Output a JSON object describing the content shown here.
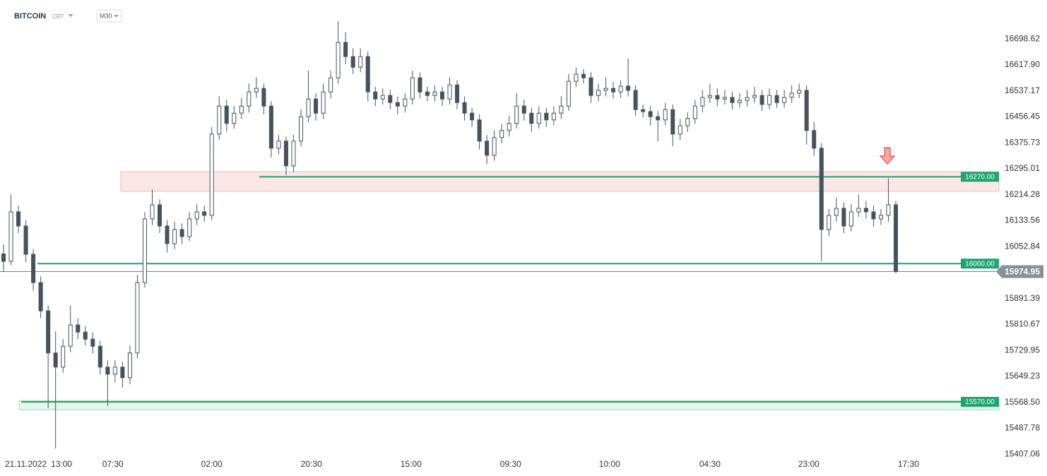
{
  "chart_data": {
    "type": "candlestick",
    "title": "BITCOIN",
    "instrument_type": "CRT",
    "timeframe": "M30",
    "up_color": "#ffffff",
    "down_color": "#46525d",
    "wick_color": "#46525d",
    "ylim": [
      15370,
      16820
    ],
    "yticks": [
      {
        "value": 15407.06,
        "label": "15407.06"
      },
      {
        "value": 15487.78,
        "label": "15487.78"
      },
      {
        "value": 15568.5,
        "label": "15568.50"
      },
      {
        "value": 15649.23,
        "label": "15649.23"
      },
      {
        "value": 15729.95,
        "label": "15729.95"
      },
      {
        "value": 15810.67,
        "label": "15810.67"
      },
      {
        "value": 15891.39,
        "label": "15891.39"
      },
      {
        "value": 16052.84,
        "label": "16052.84"
      },
      {
        "value": 16133.56,
        "label": "16133.56"
      },
      {
        "value": 16214.28,
        "label": "16214.28"
      },
      {
        "value": 16295.01,
        "label": "16295.01"
      },
      {
        "value": 16375.73,
        "label": "16375.73"
      },
      {
        "value": 16456.45,
        "label": "16456.45"
      },
      {
        "value": 16537.17,
        "label": "16537.17"
      },
      {
        "value": 16617.9,
        "label": "16617.90"
      },
      {
        "value": 16698.62,
        "label": "16698.62"
      }
    ],
    "xticks": [
      {
        "value": 3,
        "label": "21.11.2022"
      },
      {
        "value": 7.8,
        "label": "13:00"
      },
      {
        "value": 14.7,
        "label": "07:30"
      },
      {
        "value": 28,
        "label": "02:00"
      },
      {
        "value": 41.4,
        "label": "20:30"
      },
      {
        "value": 54.8,
        "label": "15:00"
      },
      {
        "value": 68.2,
        "label": "09:30"
      },
      {
        "value": 81.5,
        "label": "10:00"
      },
      {
        "value": 95,
        "label": "04:30"
      },
      {
        "value": 108.3,
        "label": "23:00"
      },
      {
        "value": 121.7,
        "label": "17:30"
      }
    ],
    "levels": [
      {
        "value": 16270,
        "label": "16270.00",
        "color": "#1ca66f"
      },
      {
        "value": 16000,
        "label": "16000.00",
        "color": "#1ca66f"
      },
      {
        "value": 15570,
        "label": "15570.00",
        "color": "#1ca66f"
      }
    ],
    "zones": [
      {
        "from": 16225,
        "to": 16286,
        "color": "#fbe3e3"
      },
      {
        "from": 15545,
        "to": 15574,
        "color": "#dff5ea"
      }
    ],
    "last_price": {
      "value": 15974.95,
      "label": "15974.95"
    },
    "ohlc": [
      [
        16030,
        16060,
        15975,
        16007
      ],
      [
        16007,
        16216,
        15995,
        16161
      ],
      [
        16161,
        16180,
        16095,
        16117
      ],
      [
        16117,
        16135,
        16005,
        16029
      ],
      [
        16029,
        16045,
        15915,
        15941
      ],
      [
        15941,
        15960,
        15830,
        15853
      ],
      [
        15853,
        15870,
        15550,
        15722
      ],
      [
        15722,
        15790,
        15425,
        15678
      ],
      [
        15678,
        15765,
        15660,
        15743
      ],
      [
        15743,
        15870,
        15725,
        15809
      ],
      [
        15809,
        15830,
        15765,
        15787
      ],
      [
        15787,
        15805,
        15745,
        15765
      ],
      [
        15765,
        15785,
        15720,
        15743
      ],
      [
        15743,
        15760,
        15655,
        15678
      ],
      [
        15678,
        15700,
        15557,
        15656
      ],
      [
        15656,
        15700,
        15630,
        15678
      ],
      [
        15678,
        15695,
        15615,
        15645
      ],
      [
        15645,
        15745,
        15625,
        15722
      ],
      [
        15722,
        15965,
        15705,
        15941
      ],
      [
        15941,
        16160,
        15925,
        16139
      ],
      [
        16139,
        16230,
        16120,
        16183
      ],
      [
        16183,
        16200,
        16095,
        16117
      ],
      [
        16117,
        16135,
        16035,
        16062
      ],
      [
        16062,
        16130,
        16045,
        16106
      ],
      [
        16106,
        16125,
        16060,
        16084
      ],
      [
        16084,
        16160,
        16070,
        16139
      ],
      [
        16139,
        16185,
        16120,
        16161
      ],
      [
        16161,
        16180,
        16130,
        16150
      ],
      [
        16150,
        16425,
        16135,
        16403
      ],
      [
        16403,
        16520,
        16385,
        16490
      ],
      [
        16490,
        16510,
        16410,
        16436
      ],
      [
        16436,
        16490,
        16420,
        16468
      ],
      [
        16468,
        16515,
        16450,
        16490
      ],
      [
        16490,
        16560,
        16470,
        16534
      ],
      [
        16534,
        16580,
        16515,
        16545
      ],
      [
        16545,
        16560,
        16465,
        16490
      ],
      [
        16490,
        16505,
        16330,
        16359
      ],
      [
        16359,
        16400,
        16340,
        16381
      ],
      [
        16381,
        16395,
        16275,
        16304
      ],
      [
        16304,
        16400,
        16285,
        16381
      ],
      [
        16381,
        16480,
        16365,
        16457
      ],
      [
        16457,
        16600,
        16440,
        16512
      ],
      [
        16512,
        16530,
        16445,
        16468
      ],
      [
        16468,
        16560,
        16450,
        16534
      ],
      [
        16534,
        16600,
        16515,
        16578
      ],
      [
        16578,
        16754,
        16560,
        16688
      ],
      [
        16688,
        16720,
        16620,
        16644
      ],
      [
        16644,
        16670,
        16590,
        16611
      ],
      [
        16611,
        16670,
        16595,
        16644
      ],
      [
        16644,
        16660,
        16505,
        16534
      ],
      [
        16534,
        16550,
        16490,
        16512
      ],
      [
        16512,
        16545,
        16495,
        16523
      ],
      [
        16523,
        16540,
        16480,
        16501
      ],
      [
        16501,
        16520,
        16465,
        16490
      ],
      [
        16490,
        16530,
        16470,
        16512
      ],
      [
        16512,
        16600,
        16495,
        16578
      ],
      [
        16578,
        16595,
        16515,
        16534
      ],
      [
        16534,
        16550,
        16505,
        16523
      ],
      [
        16523,
        16555,
        16505,
        16534
      ],
      [
        16534,
        16550,
        16490,
        16512
      ],
      [
        16512,
        16580,
        16495,
        16556
      ],
      [
        16556,
        16570,
        16480,
        16501
      ],
      [
        16501,
        16520,
        16445,
        16468
      ],
      [
        16468,
        16485,
        16425,
        16447
      ],
      [
        16447,
        16465,
        16355,
        16381
      ],
      [
        16381,
        16400,
        16310,
        16337
      ],
      [
        16337,
        16415,
        16320,
        16392
      ],
      [
        16392,
        16435,
        16375,
        16414
      ],
      [
        16414,
        16460,
        16395,
        16436
      ],
      [
        16436,
        16530,
        16420,
        16490
      ],
      [
        16490,
        16510,
        16445,
        16468
      ],
      [
        16468,
        16485,
        16410,
        16436
      ],
      [
        16436,
        16490,
        16420,
        16468
      ],
      [
        16468,
        16485,
        16425,
        16447
      ],
      [
        16447,
        16490,
        16430,
        16468
      ],
      [
        16468,
        16520,
        16450,
        16490
      ],
      [
        16490,
        16590,
        16475,
        16567
      ],
      [
        16567,
        16610,
        16550,
        16589
      ],
      [
        16589,
        16605,
        16560,
        16578
      ],
      [
        16578,
        16595,
        16500,
        16523
      ],
      [
        16523,
        16560,
        16505,
        16539
      ],
      [
        16539,
        16580,
        16520,
        16545
      ],
      [
        16545,
        16565,
        16515,
        16534
      ],
      [
        16534,
        16570,
        16515,
        16552
      ],
      [
        16552,
        16638,
        16520,
        16539
      ],
      [
        16539,
        16555,
        16460,
        16479
      ],
      [
        16479,
        16495,
        16455,
        16473
      ],
      [
        16473,
        16490,
        16430,
        16457
      ],
      [
        16457,
        16475,
        16380,
        16447
      ],
      [
        16447,
        16500,
        16430,
        16479
      ],
      [
        16479,
        16495,
        16365,
        16403
      ],
      [
        16403,
        16450,
        16385,
        16429
      ],
      [
        16429,
        16470,
        16410,
        16451
      ],
      [
        16451,
        16510,
        16435,
        16490
      ],
      [
        16490,
        16540,
        16470,
        16517
      ],
      [
        16517,
        16560,
        16500,
        16523
      ],
      [
        16523,
        16545,
        16490,
        16512
      ],
      [
        16512,
        16540,
        16495,
        16517
      ],
      [
        16517,
        16535,
        16480,
        16501
      ],
      [
        16501,
        16530,
        16485,
        16508
      ],
      [
        16508,
        16540,
        16490,
        16517
      ],
      [
        16517,
        16550,
        16500,
        16523
      ],
      [
        16523,
        16540,
        16475,
        16495
      ],
      [
        16495,
        16545,
        16480,
        16523
      ],
      [
        16523,
        16540,
        16485,
        16501
      ],
      [
        16501,
        16540,
        16485,
        16517
      ],
      [
        16517,
        16555,
        16500,
        16530
      ],
      [
        16530,
        16560,
        16515,
        16539
      ],
      [
        16539,
        16555,
        16370,
        16414
      ],
      [
        16414,
        16440,
        16335,
        16359
      ],
      [
        16359,
        16375,
        16007,
        16106
      ],
      [
        16106,
        16170,
        16085,
        16150
      ],
      [
        16150,
        16205,
        16130,
        16172
      ],
      [
        16172,
        16190,
        16095,
        16117
      ],
      [
        16117,
        16185,
        16100,
        16161
      ],
      [
        16161,
        16216,
        16145,
        16172
      ],
      [
        16172,
        16195,
        16140,
        16161
      ],
      [
        16161,
        16180,
        16115,
        16139
      ],
      [
        16139,
        16170,
        16120,
        16150
      ],
      [
        16150,
        16265,
        16130,
        16183
      ],
      [
        16183,
        16195,
        15970,
        15974.95
      ]
    ]
  }
}
